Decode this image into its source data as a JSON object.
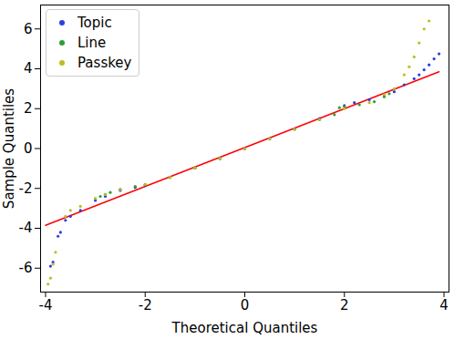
{
  "chart_data": {
    "type": "scatter",
    "xlabel": "Theoretical Quantiles",
    "ylabel": "Sample Quantiles",
    "xlim": [
      -4.1,
      4.1
    ],
    "ylim": [
      -7.2,
      7.2
    ],
    "xticks": [
      -4,
      -2,
      0,
      2,
      4
    ],
    "yticks": [
      -6,
      -4,
      -2,
      0,
      2,
      4,
      6
    ],
    "legend": "upper left",
    "series": [
      {
        "name": "Topic",
        "color": "#2b3fe0",
        "marker": "circle",
        "x": [
          -3.9,
          -3.85,
          -3.75,
          -3.7,
          -3.6,
          -3.5,
          -3.3,
          -3.0,
          -2.8,
          -2.5,
          -2.2,
          -2.0,
          -1.5,
          -1.0,
          -0.5,
          0,
          0.5,
          1.0,
          1.5,
          2.0,
          2.2,
          2.5,
          2.8,
          3.0,
          3.2,
          3.4,
          3.5,
          3.6,
          3.7,
          3.8,
          3.9
        ],
        "values": [
          -5.9,
          -5.7,
          -4.4,
          -4.2,
          -3.6,
          -3.4,
          -3.1,
          -2.6,
          -2.4,
          -2.1,
          -1.95,
          -1.85,
          -1.45,
          -0.97,
          -0.5,
          0,
          0.5,
          0.98,
          1.5,
          2.15,
          2.3,
          2.45,
          2.65,
          2.85,
          3.2,
          3.5,
          3.7,
          3.95,
          4.2,
          4.5,
          4.75
        ]
      },
      {
        "name": "Line",
        "color": "#2ca02c",
        "marker": "circle",
        "x": [
          -2.9,
          -2.8,
          -2.7,
          -2.5,
          -2.2,
          -2.0,
          -1.5,
          -1.0,
          -0.5,
          0,
          0.5,
          1.0,
          1.5,
          1.8,
          1.9,
          2.0,
          2.3,
          2.6,
          2.8,
          2.9
        ],
        "values": [
          -2.4,
          -2.3,
          -2.2,
          -2.05,
          -1.9,
          -1.8,
          -1.45,
          -0.97,
          -0.5,
          0,
          0.5,
          0.97,
          1.45,
          1.7,
          2.05,
          2.1,
          2.2,
          2.35,
          2.6,
          2.75
        ]
      },
      {
        "name": "Passkey",
        "color": "#bcbd22",
        "marker": "circle",
        "x": [
          -3.95,
          -3.9,
          -3.85,
          -3.8,
          -3.6,
          -3.5,
          -3.3,
          -3.0,
          -2.8,
          -2.5,
          -2.0,
          -1.5,
          -1.0,
          -0.5,
          0,
          0.5,
          1.0,
          1.5,
          2.0,
          2.5,
          2.8,
          3.0,
          3.2,
          3.3,
          3.4,
          3.5,
          3.6,
          3.7
        ],
        "values": [
          -6.8,
          -6.5,
          -5.8,
          -5.2,
          -3.4,
          -3.1,
          -2.9,
          -2.5,
          -2.3,
          -2.05,
          -1.8,
          -1.45,
          -0.97,
          -0.5,
          0,
          0.5,
          0.97,
          1.45,
          2.0,
          2.3,
          2.7,
          3.0,
          3.7,
          4.1,
          4.6,
          5.3,
          6.0,
          6.4
        ]
      }
    ],
    "reference_line": {
      "color": "red",
      "x": [
        -4.0,
        3.9
      ],
      "values": [
        -3.85,
        3.85
      ]
    }
  }
}
